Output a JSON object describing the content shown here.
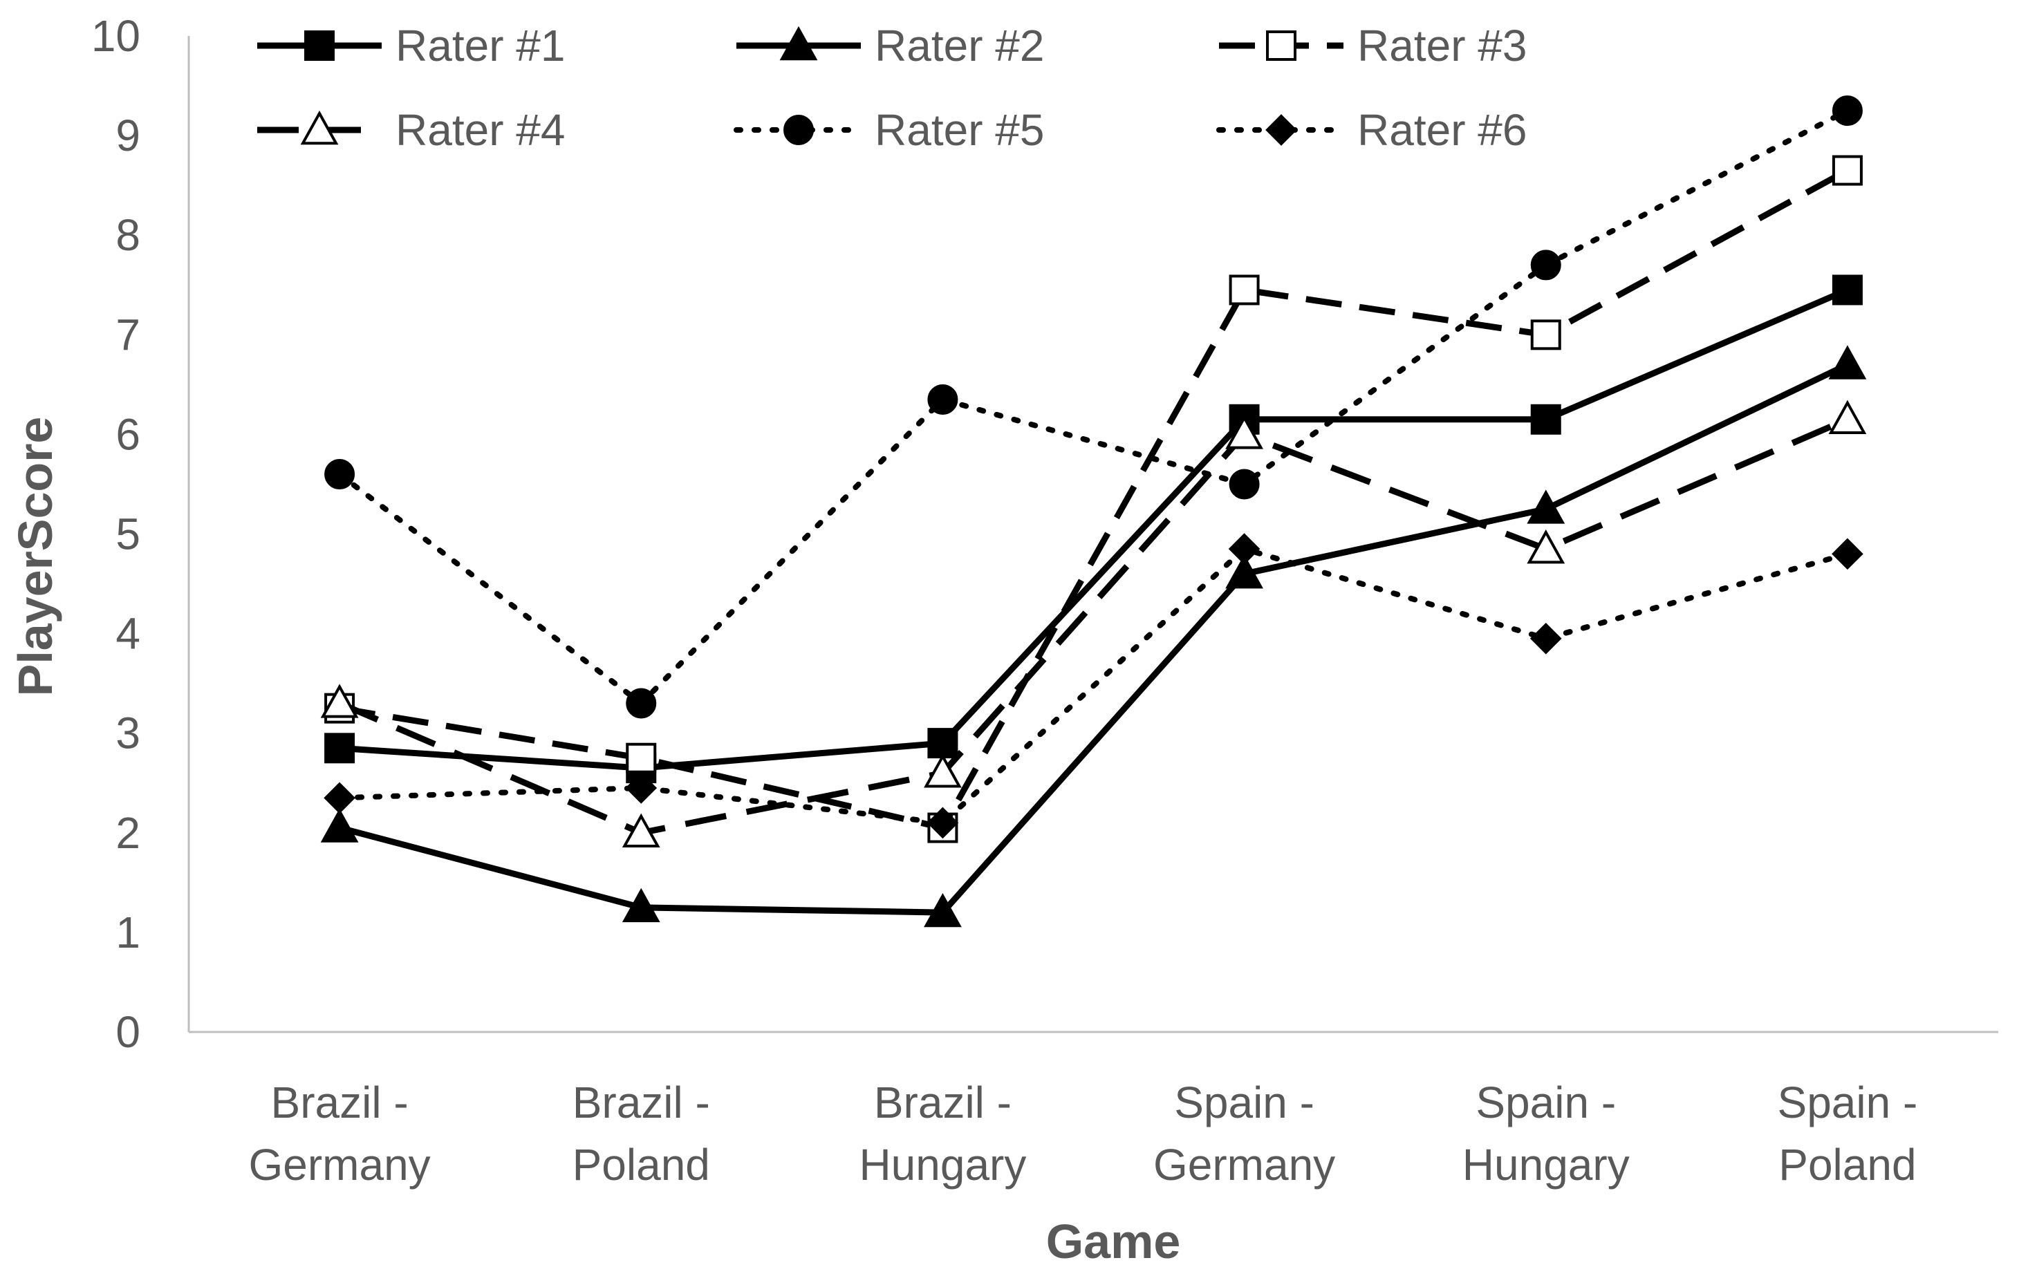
{
  "chart_data": {
    "type": "line",
    "title": "",
    "xlabel": "Game",
    "ylabel": "PlayerScore",
    "ylim": [
      0,
      10
    ],
    "yticks": [
      0,
      1,
      2,
      3,
      4,
      5,
      6,
      7,
      8,
      9,
      10
    ],
    "categories": [
      [
        "Brazil -",
        "Germany"
      ],
      [
        "Brazil -",
        "Poland"
      ],
      [
        "Brazil -",
        "Hungary"
      ],
      [
        "Spain -",
        "Germany"
      ],
      [
        "Spain -",
        "Hungary"
      ],
      [
        "Spain -",
        "Poland"
      ]
    ],
    "legend_position": "top",
    "series": [
      {
        "name": "Rater #1",
        "values": [
          2.85,
          2.65,
          2.9,
          6.15,
          6.15,
          7.45
        ],
        "line": "solid",
        "marker": "square-filled"
      },
      {
        "name": "Rater #2",
        "values": [
          2.05,
          1.25,
          1.2,
          4.6,
          5.25,
          6.7
        ],
        "line": "solid",
        "marker": "triangle-filled"
      },
      {
        "name": "Rater #3",
        "values": [
          3.25,
          2.75,
          2.05,
          7.45,
          7.0,
          8.65
        ],
        "line": "dashed",
        "marker": "square-open"
      },
      {
        "name": "Rater #4",
        "values": [
          3.3,
          2.0,
          2.6,
          6.0,
          4.85,
          6.15
        ],
        "line": "long-dashed",
        "marker": "triangle-open"
      },
      {
        "name": "Rater #5",
        "values": [
          5.6,
          3.3,
          6.35,
          5.5,
          7.7,
          9.25
        ],
        "line": "dotted",
        "marker": "circle-filled"
      },
      {
        "name": "Rater #6",
        "values": [
          2.35,
          2.45,
          2.1,
          4.85,
          3.95,
          4.8
        ],
        "line": "dotted",
        "marker": "diamond-filled"
      }
    ]
  },
  "colors": {
    "series": "#000000",
    "axis": "#bfbfbf",
    "text": "#595959"
  }
}
